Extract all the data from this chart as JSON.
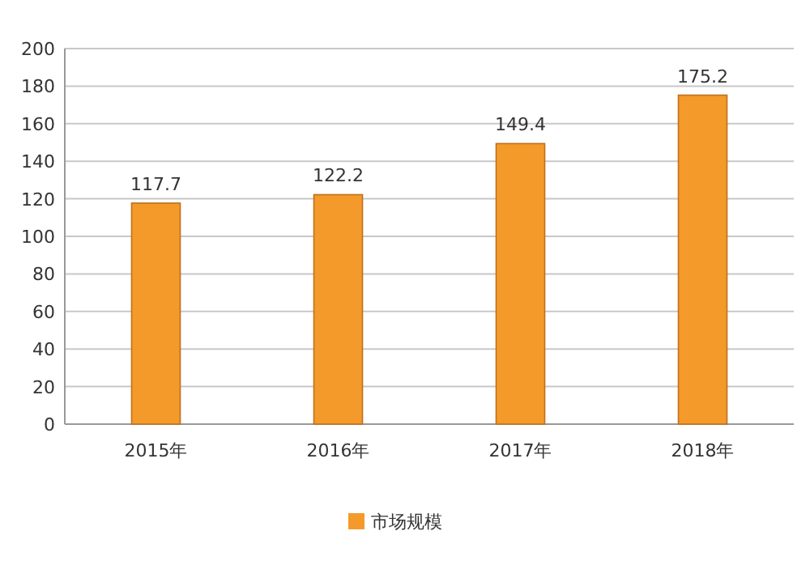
{
  "chart_data": {
    "type": "bar",
    "categories": [
      "2015年",
      "2016年",
      "2017年",
      "2018年"
    ],
    "series": [
      {
        "name": "市场规模",
        "color": "#f39a2b",
        "values": [
          117.7,
          122.2,
          149.4,
          175.2
        ]
      }
    ],
    "ylim": [
      0,
      200
    ],
    "yticks": [
      0,
      20,
      40,
      60,
      80,
      100,
      120,
      140,
      160,
      180,
      200
    ],
    "grid": "y",
    "legend": "bottom",
    "data_labels": true
  }
}
